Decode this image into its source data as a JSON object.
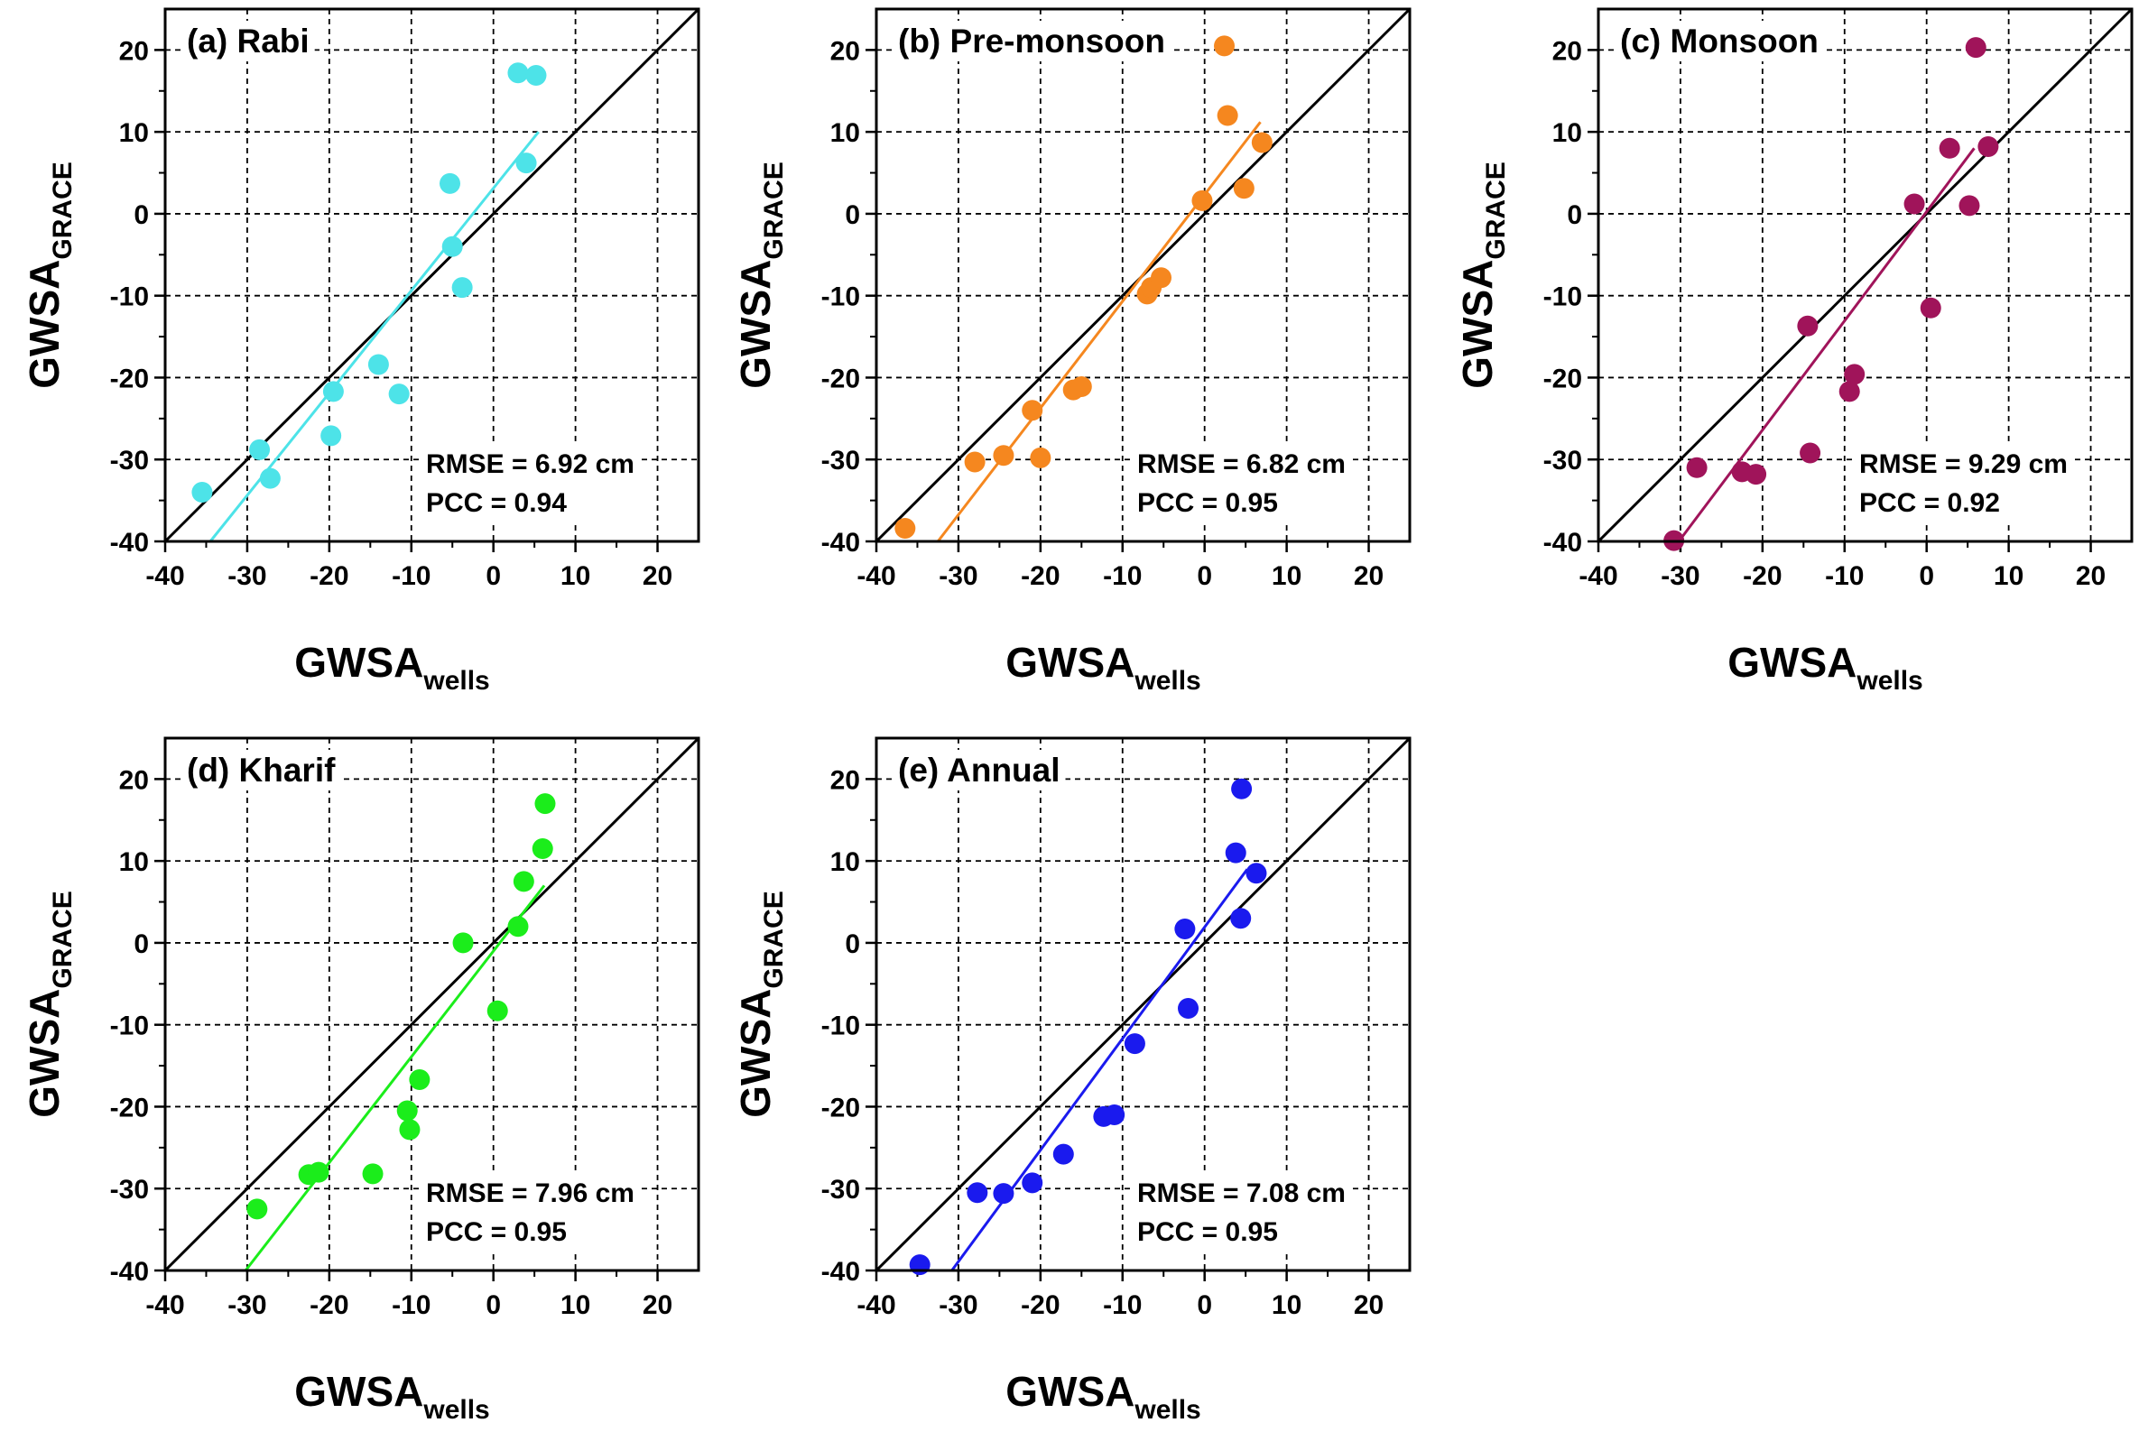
{
  "figure": {
    "background": "#ffffff"
  },
  "chart_data": [
    {
      "type": "scatter",
      "title": "(a) Rabi",
      "xlabel": "GWSA",
      "xlabel_sub": "wells",
      "ylabel": "GWSA",
      "ylabel_sub": "GRACE",
      "xlim": [
        -40,
        25
      ],
      "ylim": [
        -40,
        25
      ],
      "xticks": [
        -40,
        -30,
        -20,
        -10,
        0,
        10,
        20
      ],
      "yticks": [
        -40,
        -30,
        -20,
        -10,
        0,
        10,
        20
      ],
      "grid": true,
      "color": "#4de3e8",
      "points": [
        [
          -35.5,
          -34
        ],
        [
          -28.5,
          -28.8
        ],
        [
          -27.2,
          -32.3
        ],
        [
          -19.5,
          -21.7
        ],
        [
          -19.8,
          -27.1
        ],
        [
          -14,
          -18.4
        ],
        [
          -11.5,
          -22
        ],
        [
          -5.3,
          3.7
        ],
        [
          -5,
          -4
        ],
        [
          -3.8,
          -9
        ],
        [
          3,
          17.2
        ],
        [
          4,
          6.2
        ],
        [
          5.2,
          16.9
        ]
      ],
      "fit_line": [
        [
          -34.5,
          -40
        ],
        [
          5.5,
          10
        ]
      ],
      "rmse": "RMSE = 6.92 cm",
      "pcc": "PCC = 0.94",
      "legend": "none"
    },
    {
      "type": "scatter",
      "title": "(b) Pre-monsoon",
      "xlabel": "GWSA",
      "xlabel_sub": "wells",
      "ylabel": "GWSA",
      "ylabel_sub": "GRACE",
      "xlim": [
        -40,
        25
      ],
      "ylim": [
        -40,
        25
      ],
      "xticks": [
        -40,
        -30,
        -20,
        -10,
        0,
        10,
        20
      ],
      "yticks": [
        -40,
        -30,
        -20,
        -10,
        0,
        10,
        20
      ],
      "grid": true,
      "color": "#f5871f",
      "points": [
        [
          -36.5,
          -38.4
        ],
        [
          -28,
          -30.3
        ],
        [
          -24.5,
          -29.5
        ],
        [
          -21,
          -24
        ],
        [
          -20,
          -29.8
        ],
        [
          -16,
          -21.5
        ],
        [
          -15,
          -21.1
        ],
        [
          -7,
          -9.8
        ],
        [
          -6.5,
          -9
        ],
        [
          -5.3,
          -7.8
        ],
        [
          -0.3,
          1.6
        ],
        [
          2.4,
          20.5
        ],
        [
          2.8,
          12
        ],
        [
          4.8,
          3.1
        ],
        [
          7,
          8.7
        ]
      ],
      "fit_line": [
        [
          -32.5,
          -40
        ],
        [
          6.8,
          11.2
        ]
      ],
      "rmse": "RMSE = 6.82 cm",
      "pcc": "PCC = 0.95",
      "legend": "none"
    },
    {
      "type": "scatter",
      "title": "(c) Monsoon",
      "xlabel": "GWSA",
      "xlabel_sub": "wells",
      "ylabel": "GWSA",
      "ylabel_sub": "GRACE",
      "xlim": [
        -40,
        25
      ],
      "ylim": [
        -40,
        25
      ],
      "xticks": [
        -40,
        -30,
        -20,
        -10,
        0,
        10,
        20
      ],
      "yticks": [
        -40,
        -30,
        -20,
        -10,
        0,
        10,
        20
      ],
      "grid": true,
      "color": "#a0145a",
      "points": [
        [
          -30.8,
          -39.9
        ],
        [
          -28,
          -31
        ],
        [
          -22.5,
          -31.5
        ],
        [
          -20.8,
          -31.8
        ],
        [
          -14.5,
          -13.7
        ],
        [
          -14.2,
          -29.2
        ],
        [
          -9.4,
          -21.7
        ],
        [
          -8.8,
          -19.6
        ],
        [
          -1.5,
          1.2
        ],
        [
          0.5,
          -11.5
        ],
        [
          2.8,
          8
        ],
        [
          5.2,
          1
        ],
        [
          6,
          20.3
        ],
        [
          7.5,
          8.2
        ]
      ],
      "fit_line": [
        [
          -30.2,
          -40
        ],
        [
          5.8,
          8
        ]
      ],
      "rmse": "RMSE = 9.29 cm",
      "pcc": "PCC = 0.92",
      "legend": "none"
    },
    {
      "type": "scatter",
      "title": "(d) Kharif",
      "xlabel": "GWSA",
      "xlabel_sub": "wells",
      "ylabel": "GWSA",
      "ylabel_sub": "GRACE",
      "xlim": [
        -40,
        25
      ],
      "ylim": [
        -40,
        25
      ],
      "xticks": [
        -40,
        -30,
        -20,
        -10,
        0,
        10,
        20
      ],
      "yticks": [
        -40,
        -30,
        -20,
        -10,
        0,
        10,
        20
      ],
      "grid": true,
      "color": "#1bed1b",
      "points": [
        [
          -28.8,
          -32.5
        ],
        [
          -22.5,
          -28.3
        ],
        [
          -21.3,
          -28
        ],
        [
          -14.7,
          -28.2
        ],
        [
          -10.5,
          -20.5
        ],
        [
          -10.2,
          -22.8
        ],
        [
          -9,
          -16.7
        ],
        [
          -3.7,
          0
        ],
        [
          0.5,
          -8.3
        ],
        [
          3,
          2
        ],
        [
          3.7,
          7.5
        ],
        [
          6,
          11.5
        ],
        [
          6.3,
          17
        ]
      ],
      "fit_line": [
        [
          -30.2,
          -40
        ],
        [
          6.2,
          7
        ]
      ],
      "rmse": "RMSE = 7.96 cm",
      "pcc": "PCC = 0.95",
      "legend": "none"
    },
    {
      "type": "scatter",
      "title": "(e) Annual",
      "xlabel": "GWSA",
      "xlabel_sub": "wells",
      "ylabel": "GWSA",
      "ylabel_sub": "GRACE",
      "xlim": [
        -40,
        25
      ],
      "ylim": [
        -40,
        25
      ],
      "xticks": [
        -40,
        -30,
        -20,
        -10,
        0,
        10,
        20
      ],
      "yticks": [
        -40,
        -30,
        -20,
        -10,
        0,
        10,
        20
      ],
      "grid": true,
      "color": "#1a1aee",
      "points": [
        [
          -34.7,
          -39.3
        ],
        [
          -27.7,
          -30.5
        ],
        [
          -24.5,
          -30.6
        ],
        [
          -21,
          -29.3
        ],
        [
          -17.2,
          -25.8
        ],
        [
          -12.3,
          -21.2
        ],
        [
          -11,
          -21
        ],
        [
          -8.5,
          -12.3
        ],
        [
          -2.4,
          1.7
        ],
        [
          -2,
          -8
        ],
        [
          3.8,
          11
        ],
        [
          4.4,
          3
        ],
        [
          4.5,
          18.8
        ],
        [
          6.3,
          8.5
        ]
      ],
      "fit_line": [
        [
          -30.8,
          -40
        ],
        [
          5.2,
          9
        ]
      ],
      "rmse": "RMSE = 7.08 cm",
      "pcc": "PCC = 0.95",
      "legend": "none"
    }
  ]
}
